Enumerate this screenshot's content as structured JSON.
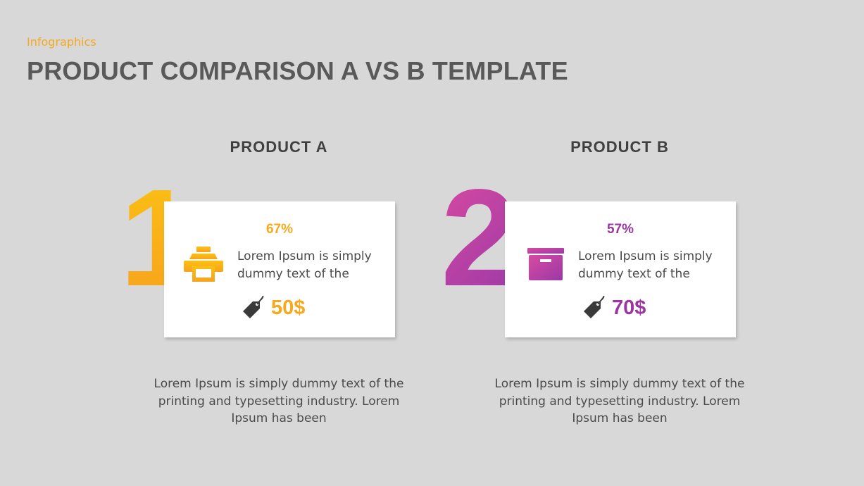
{
  "header": {
    "kicker": "Infographics",
    "title": "PRODUCT COMPARISON A VS B TEMPLATE"
  },
  "colors": {
    "accent_a": "#f7a91e",
    "accent_b": "#9b37a0",
    "background": "#d8d8d8"
  },
  "products": [
    {
      "heading": "PRODUCT A",
      "number": "1",
      "percent": "67%",
      "icon": "printer-icon",
      "card_text": "Lorem Ipsum is simply dummy text of the",
      "price": "50$",
      "description": "Lorem Ipsum is simply dummy text of the printing and typesetting industry. Lorem Ipsum has been"
    },
    {
      "heading": "PRODUCT B",
      "number": "2",
      "percent": "57%",
      "icon": "archive-box-icon",
      "card_text": "Lorem Ipsum is simply dummy text of the",
      "price": "70$",
      "description": "Lorem Ipsum is simply dummy text of the printing and typesetting industry. Lorem Ipsum has been"
    }
  ]
}
